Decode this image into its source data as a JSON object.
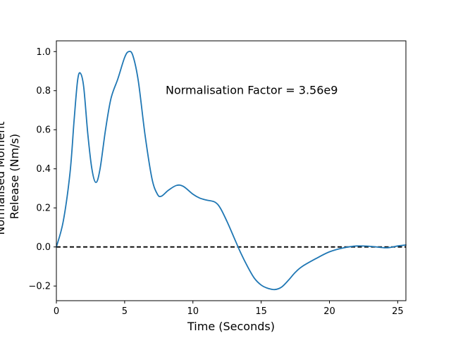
{
  "chart_data": {
    "type": "line",
    "xlabel": "Time (Seconds)",
    "ylabel_lines": [
      "Normalised Moment",
      "Release (Nm/s)"
    ],
    "annotation": {
      "text": "Normalisation Factor = 3.56e9",
      "x": 8,
      "y": 0.8
    },
    "xlim": [
      0,
      25.6
    ],
    "ylim": [
      -0.275,
      1.055
    ],
    "xticks": [
      0,
      5,
      10,
      15,
      20,
      25
    ],
    "yticks": [
      -0.2,
      0.0,
      0.2,
      0.4,
      0.6,
      0.8,
      1.0
    ],
    "ytick_labels": [
      "−0.2",
      "0.0",
      "0.2",
      "0.4",
      "0.6",
      "0.8",
      "1.0"
    ],
    "grid": false,
    "reference_line": {
      "y": 0.0,
      "style": "dashed",
      "color": "#000000"
    },
    "series": [
      {
        "color": "#1f77b4",
        "points": [
          [
            0.0,
            0.0
          ],
          [
            0.5,
            0.13
          ],
          [
            1.0,
            0.38
          ],
          [
            1.3,
            0.65
          ],
          [
            1.55,
            0.85
          ],
          [
            1.75,
            0.89
          ],
          [
            2.0,
            0.82
          ],
          [
            2.3,
            0.58
          ],
          [
            2.6,
            0.4
          ],
          [
            2.9,
            0.33
          ],
          [
            3.2,
            0.4
          ],
          [
            3.6,
            0.6
          ],
          [
            4.0,
            0.76
          ],
          [
            4.5,
            0.86
          ],
          [
            5.0,
            0.97
          ],
          [
            5.3,
            1.0
          ],
          [
            5.6,
            0.98
          ],
          [
            6.0,
            0.85
          ],
          [
            6.5,
            0.57
          ],
          [
            7.0,
            0.35
          ],
          [
            7.4,
            0.27
          ],
          [
            7.7,
            0.26
          ],
          [
            8.2,
            0.29
          ],
          [
            8.8,
            0.315
          ],
          [
            9.3,
            0.31
          ],
          [
            10.0,
            0.27
          ],
          [
            10.5,
            0.25
          ],
          [
            11.0,
            0.24
          ],
          [
            11.6,
            0.23
          ],
          [
            12.0,
            0.2
          ],
          [
            12.5,
            0.13
          ],
          [
            13.0,
            0.05
          ],
          [
            13.5,
            -0.03
          ],
          [
            14.0,
            -0.1
          ],
          [
            14.5,
            -0.16
          ],
          [
            15.0,
            -0.195
          ],
          [
            15.5,
            -0.212
          ],
          [
            16.0,
            -0.218
          ],
          [
            16.5,
            -0.205
          ],
          [
            17.0,
            -0.17
          ],
          [
            17.5,
            -0.13
          ],
          [
            18.0,
            -0.1
          ],
          [
            19.0,
            -0.06
          ],
          [
            20.0,
            -0.025
          ],
          [
            21.0,
            -0.005
          ],
          [
            22.0,
            0.005
          ],
          [
            23.0,
            0.003
          ],
          [
            24.0,
            -0.004
          ],
          [
            24.5,
            -0.002
          ],
          [
            25.0,
            0.005
          ],
          [
            25.6,
            0.01
          ]
        ]
      }
    ]
  }
}
